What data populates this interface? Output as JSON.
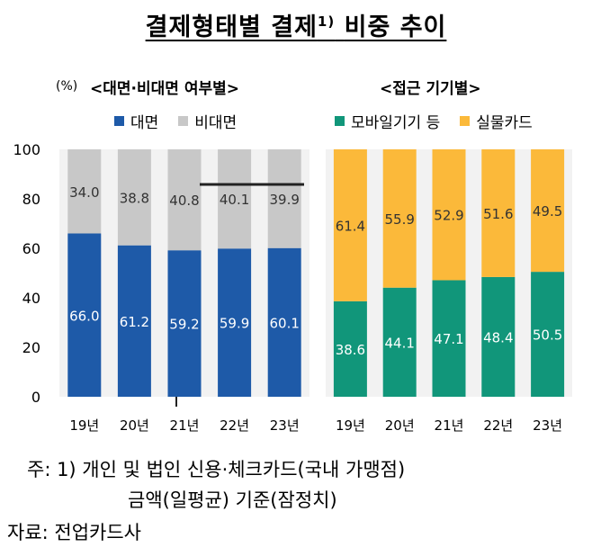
{
  "title_main": "결제형태별 결제",
  "title_sup": "1)",
  "title_tail": "비중 추이",
  "unit": "(%)",
  "colors": {
    "face": "#1e5aa8",
    "nonface": "#c8c8c8",
    "mobile": "#11967a",
    "card": "#fbb93a",
    "panel_bg": "#f2f2f2"
  },
  "chart_data": [
    {
      "type": "bar",
      "stacked": true,
      "title": "<대면·비대면 여부별>",
      "categories": [
        "19년",
        "20년",
        "21년",
        "22년",
        "23년"
      ],
      "series": [
        {
          "name": "대면",
          "values": [
            66.0,
            61.2,
            59.2,
            59.9,
            60.1
          ]
        },
        {
          "name": "비대면",
          "values": [
            34.0,
            38.8,
            40.8,
            40.1,
            39.9
          ]
        }
      ],
      "ylim": [
        0,
        100
      ],
      "yticks": [
        0,
        20,
        40,
        60,
        80,
        100
      ],
      "legend_position": "top"
    },
    {
      "type": "bar",
      "stacked": true,
      "title": "<접근 기기별>",
      "categories": [
        "19년",
        "20년",
        "21년",
        "22년",
        "23년"
      ],
      "series": [
        {
          "name": "모바일기기 등",
          "values": [
            38.6,
            44.1,
            47.1,
            48.4,
            50.5
          ]
        },
        {
          "name": "실물카드",
          "values": [
            61.4,
            55.9,
            52.9,
            51.6,
            49.5
          ]
        }
      ],
      "ylim": [
        0,
        100
      ],
      "legend_position": "top"
    }
  ],
  "notes": {
    "line1": "주: 1) 개인 및 법인 신용·체크카드(국내 가맹점)",
    "line2": "금액(일평균) 기준(잠정치)",
    "source": "자료: 전업카드사"
  }
}
